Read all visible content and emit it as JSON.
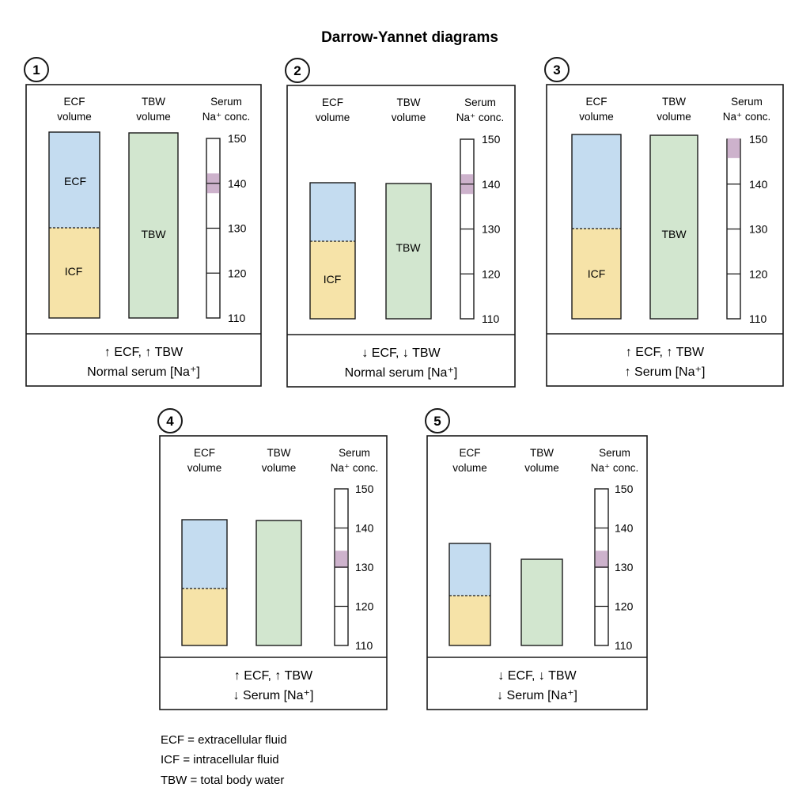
{
  "title": "Darrow-Yannet diagrams",
  "column_headers": {
    "ecf": [
      "ECF",
      "volume"
    ],
    "tbw": [
      "TBW",
      "volume"
    ],
    "serum": [
      "Serum",
      "Na⁺ conc."
    ]
  },
  "scale_ticks": [
    "150",
    "140",
    "130",
    "120",
    "110"
  ],
  "compartment_labels": {
    "ecf": "ECF",
    "icf": "ICF",
    "tbw": "TBW"
  },
  "colors": {
    "ecf": "#c4dcf0",
    "icf": "#f6e3a8",
    "tbw": "#d2e6cf",
    "sodium_marker": "#cdb2cc",
    "border": "#1a1a1a"
  },
  "panels": [
    {
      "number": "1",
      "summary": [
        "↑ ECF, ↑ TBW",
        "Normal serum [Na⁺]"
      ],
      "sodium": 140,
      "show_labels": true
    },
    {
      "number": "2",
      "summary": [
        "↓ ECF, ↓ TBW",
        "Normal serum [Na⁺]"
      ],
      "sodium": 140,
      "show_labels": true
    },
    {
      "number": "3",
      "summary": [
        "↑ ECF, ↑ TBW",
        "↑ Serum [Na⁺]"
      ],
      "sodium": 148,
      "show_labels": true
    },
    {
      "number": "4",
      "summary": [
        "↑ ECF, ↑ TBW",
        "↓ Serum [Na⁺]"
      ],
      "sodium": 132,
      "show_labels": false
    },
    {
      "number": "5",
      "summary": [
        "↓ ECF, ↓ TBW",
        "↓ Serum [Na⁺]"
      ],
      "sodium": 132,
      "show_labels": false
    }
  ],
  "legend": [
    "ECF = extracellular fluid",
    "ICF = intracellular fluid",
    "TBW = total body water"
  ]
}
